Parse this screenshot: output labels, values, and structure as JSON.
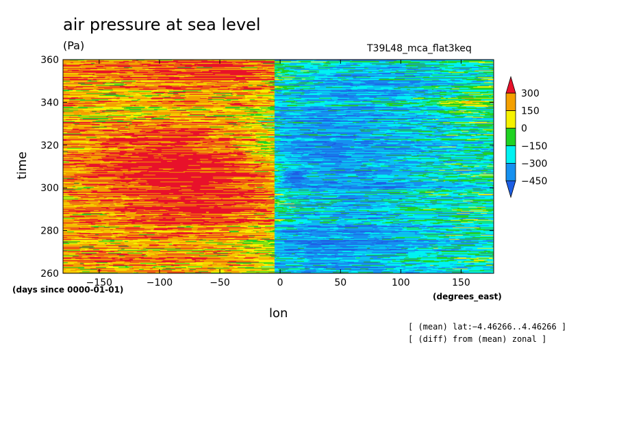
{
  "chart_data": {
    "type": "heatmap",
    "title": "air pressure at sea level",
    "units": "(Pa)",
    "run_label": "T39L48_mca_flat3keq",
    "xlabel": "lon",
    "xlabel_units": "(degrees_east)",
    "ylabel": "time",
    "ylabel_units": "(days since 0000-01-01)",
    "xlim": [
      -180,
      177
    ],
    "ylim": [
      260,
      360
    ],
    "x_ticks": [
      -150,
      -100,
      -50,
      0,
      50,
      100,
      150
    ],
    "y_ticks": [
      260,
      280,
      300,
      320,
      340,
      360
    ],
    "colorbar": {
      "labels": [
        "300",
        "150",
        "0",
        "−150",
        "−300",
        "−450"
      ],
      "levels": [
        300,
        150,
        0,
        -150,
        -300,
        -450
      ],
      "colors": [
        "#e8112a",
        "#f4a000",
        "#f6f200",
        "#1fd322",
        "#00f2f2",
        "#1691f0",
        "#1d5fe5"
      ]
    },
    "notes": [
      "[ (mean) lat:−4.46266..4.46266 ]",
      "[ (diff) from (mean) zonal ]"
    ]
  }
}
